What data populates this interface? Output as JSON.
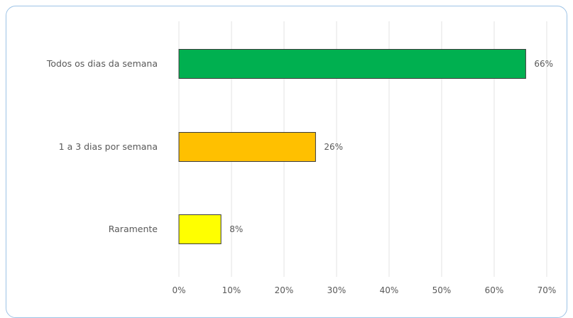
{
  "chart_data": {
    "type": "bar",
    "orientation": "horizontal",
    "title": "",
    "xlabel": "",
    "ylabel": "",
    "categories": [
      "Todos os dias da semana",
      "1 a 3 dias por semana",
      "Raramente"
    ],
    "values": [
      66,
      26,
      8
    ],
    "data_labels": [
      "66%",
      "26%",
      "8%"
    ],
    "bar_colors": [
      "#00b050",
      "#ffc000",
      "#ffff00"
    ],
    "xlim": [
      0,
      70
    ],
    "x_ticks": [
      0,
      10,
      20,
      30,
      40,
      50,
      60,
      70
    ],
    "x_tick_labels": [
      "0%",
      "10%",
      "20%",
      "30%",
      "40%",
      "50%",
      "60%",
      "70%"
    ],
    "grid": true,
    "legend": "none"
  }
}
